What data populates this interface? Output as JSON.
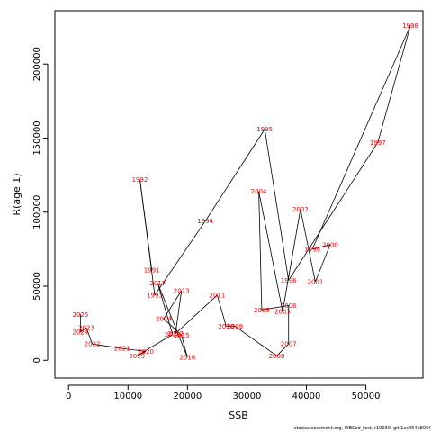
{
  "chart_data": {
    "type": "scatter",
    "xlabel": "SSB",
    "ylabel": "R(age 1)",
    "xlim": [
      -2300,
      59600
    ],
    "ylim": [
      -12000,
      236000
    ],
    "xticks": [
      0,
      10000,
      20000,
      30000,
      40000,
      50000
    ],
    "yticks": [
      0,
      50000,
      100000,
      150000,
      200000
    ],
    "xtick_labels": [
      "0",
      "10000",
      "20000",
      "30000",
      "40000",
      "50000"
    ],
    "ytick_labels": [
      "0",
      "50000",
      "100000",
      "150000",
      "200000"
    ],
    "label_color": "#ff0000",
    "line_color": "#000000",
    "caption": "stockassessment.org, WBCod_test, r10039, git:1cc464b806f",
    "points": [
      {
        "year": "1991",
        "ssb": 14000,
        "rec": 61000
      },
      {
        "year": "1992",
        "ssb": 12000,
        "rec": 122000
      },
      {
        "year": "1993",
        "ssb": 14500,
        "rec": 44000
      },
      {
        "year": "1994",
        "ssb": 23000,
        "rec": 94000
      },
      {
        "year": "1995",
        "ssb": 33000,
        "rec": 156000
      },
      {
        "year": "1996",
        "ssb": 37000,
        "rec": 54000
      },
      {
        "year": "1997",
        "ssb": 52000,
        "rec": 147000
      },
      {
        "year": "1998",
        "ssb": 57500,
        "rec": 226000
      },
      {
        "year": "1999",
        "ssb": 41000,
        "rec": 75000
      },
      {
        "year": "2000",
        "ssb": 44000,
        "rec": 78000
      },
      {
        "year": "2001",
        "ssb": 41500,
        "rec": 53000
      },
      {
        "year": "2002",
        "ssb": 39000,
        "rec": 102000
      },
      {
        "year": "2003",
        "ssb": 36000,
        "rec": 33000
      },
      {
        "year": "2004",
        "ssb": 32000,
        "rec": 114000
      },
      {
        "year": "2005",
        "ssb": 32500,
        "rec": 34000
      },
      {
        "year": "2006",
        "ssb": 37000,
        "rec": 37000
      },
      {
        "year": "2007",
        "ssb": 37000,
        "rec": 11000
      },
      {
        "year": "2008",
        "ssb": 35000,
        "rec": 3000
      },
      {
        "year": "2009",
        "ssb": 28000,
        "rec": 23000
      },
      {
        "year": "2010",
        "ssb": 26500,
        "rec": 23000
      },
      {
        "year": "2011",
        "ssb": 25000,
        "rec": 44000
      },
      {
        "year": "2012",
        "ssb": 18000,
        "rec": 18000
      },
      {
        "year": "2013",
        "ssb": 19000,
        "rec": 47000
      },
      {
        "year": "2014",
        "ssb": 16000,
        "rec": 28000
      },
      {
        "year": "2015",
        "ssb": 19000,
        "rec": 17000
      },
      {
        "year": "2016",
        "ssb": 20000,
        "rec": 2000
      },
      {
        "year": "2017",
        "ssb": 15000,
        "rec": 52000
      },
      {
        "year": "2018",
        "ssb": 17500,
        "rec": 17500
      },
      {
        "year": "2019",
        "ssb": 11500,
        "rec": 3000
      },
      {
        "year": "2020",
        "ssb": 13000,
        "rec": 6000
      },
      {
        "year": "2021",
        "ssb": 9000,
        "rec": 8000
      },
      {
        "year": "2022",
        "ssb": 4000,
        "rec": 11000
      },
      {
        "year": "2023",
        "ssb": 3000,
        "rec": 22000
      },
      {
        "year": "2024",
        "ssb": 2000,
        "rec": 19000
      },
      {
        "year": "2025",
        "ssb": 2000,
        "rec": 31000
      }
    ]
  }
}
